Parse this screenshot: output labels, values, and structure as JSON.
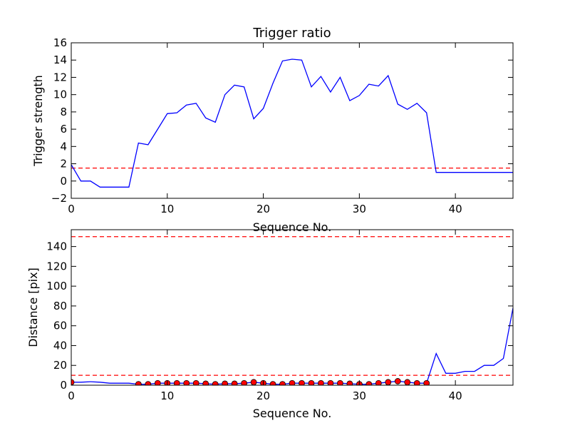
{
  "chart_data": [
    {
      "type": "line",
      "title": "Trigger ratio",
      "xlabel": "Sequence No.",
      "ylabel": "Trigger strength",
      "xlim": [
        0,
        46
      ],
      "ylim": [
        -2,
        16
      ],
      "xticks": [
        0,
        10,
        20,
        30,
        40
      ],
      "yticks": [
        -2,
        0,
        2,
        4,
        6,
        8,
        10,
        12,
        14,
        16
      ],
      "grid": false,
      "series": [
        {
          "color": "#0000ff",
          "x": [
            0,
            1,
            2,
            3,
            4,
            5,
            6,
            7,
            8,
            9,
            10,
            11,
            12,
            13,
            14,
            15,
            16,
            17,
            18,
            19,
            20,
            21,
            22,
            23,
            24,
            25,
            26,
            27,
            28,
            29,
            30,
            31,
            32,
            33,
            34,
            35,
            36,
            37,
            38,
            39,
            40,
            41,
            42,
            43,
            44,
            45,
            46
          ],
          "y": [
            1.9,
            0,
            0,
            -0.7,
            -0.7,
            -0.7,
            -0.7,
            4.4,
            4.2,
            6,
            7.8,
            7.9,
            8.8,
            9,
            7.3,
            6.8,
            10,
            11.1,
            10.9,
            7.2,
            8.4,
            11.3,
            13.9,
            14.1,
            14,
            10.9,
            12.1,
            10.3,
            12,
            9.3,
            9.9,
            11.2,
            11,
            12.2,
            8.9,
            8.3,
            9,
            7.9,
            1,
            1,
            1,
            1,
            1,
            1,
            1,
            1,
            1
          ]
        }
      ],
      "hlines": [
        {
          "y": 1.5,
          "color": "#ff0000",
          "style": "dashed"
        }
      ]
    },
    {
      "type": "line",
      "title": "",
      "xlabel": "Sequence No.",
      "ylabel": "Distance [pix]",
      "xlim": [
        0,
        46
      ],
      "ylim": [
        0,
        157
      ],
      "xticks": [
        0,
        10,
        20,
        30,
        40
      ],
      "yticks": [
        0,
        20,
        40,
        60,
        80,
        100,
        120,
        140
      ],
      "grid": false,
      "series": [
        {
          "color": "#0000ff",
          "x": [
            0,
            1,
            2,
            3,
            4,
            5,
            6,
            7,
            8,
            9,
            10,
            11,
            12,
            13,
            14,
            15,
            16,
            17,
            18,
            19,
            20,
            21,
            22,
            23,
            24,
            25,
            26,
            27,
            28,
            29,
            30,
            31,
            32,
            33,
            34,
            35,
            36,
            37,
            38,
            39,
            40,
            41,
            42,
            43,
            44,
            45,
            46
          ],
          "y": [
            3,
            3,
            3.5,
            3,
            2,
            2,
            2,
            1,
            1,
            2,
            2,
            2,
            2,
            2,
            1.5,
            1,
            1.5,
            1.5,
            2,
            3,
            2,
            1,
            1,
            2,
            2,
            2,
            2,
            2,
            2,
            1.5,
            1,
            1,
            2,
            3,
            4,
            3,
            2,
            2,
            32,
            12,
            12,
            14,
            14,
            20,
            20,
            27,
            78
          ]
        }
      ],
      "markers": {
        "color": "#ff0000",
        "edge": "#000000",
        "x": [
          0,
          7,
          8,
          9,
          10,
          11,
          12,
          13,
          14,
          15,
          16,
          17,
          18,
          19,
          20,
          21,
          22,
          23,
          24,
          25,
          26,
          27,
          28,
          29,
          30,
          31,
          32,
          33,
          34,
          35,
          36,
          37
        ],
        "y": [
          3,
          1,
          1,
          2,
          2,
          2,
          2,
          2,
          1.5,
          1,
          1.5,
          1.5,
          2,
          3,
          2,
          1,
          1,
          2,
          2,
          2,
          2,
          2,
          2,
          1.5,
          1,
          1,
          2,
          3,
          4,
          3,
          2,
          2
        ]
      },
      "hlines": [
        {
          "y": 10,
          "color": "#ff0000",
          "style": "dashed"
        },
        {
          "y": 150,
          "color": "#ff0000",
          "style": "dashed"
        }
      ]
    }
  ]
}
